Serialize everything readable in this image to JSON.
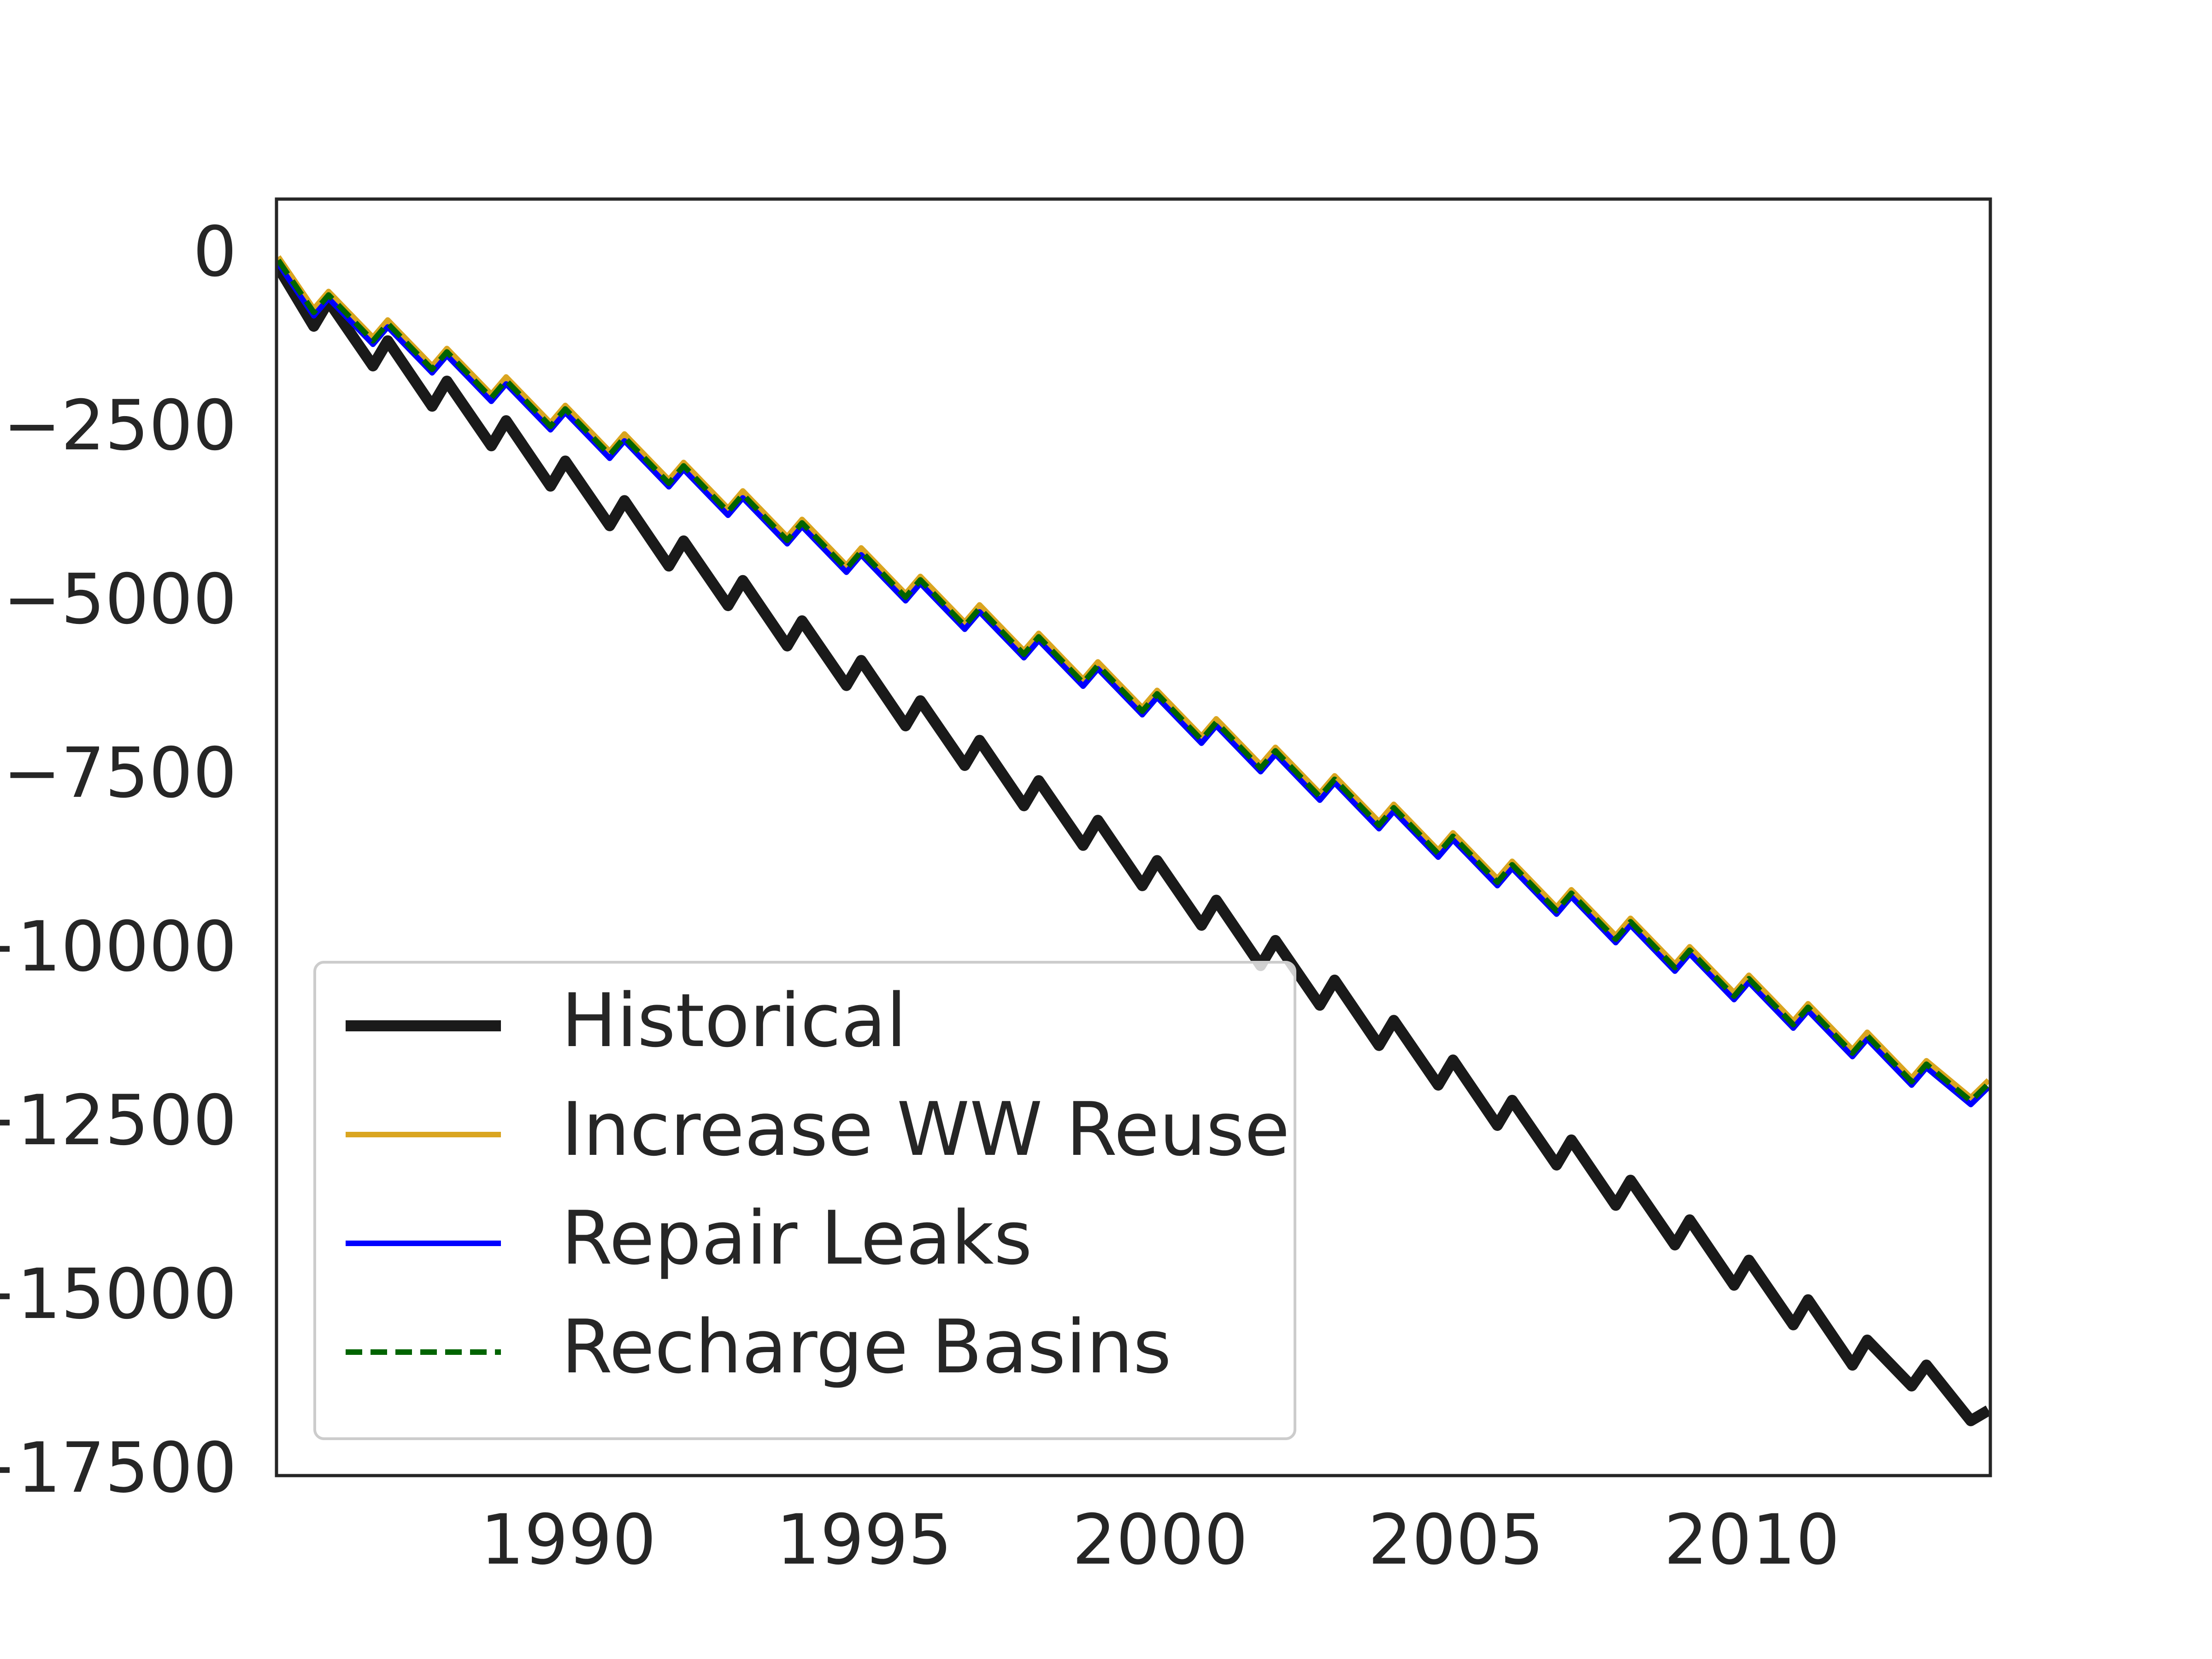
{
  "chart_data": {
    "type": "line",
    "x": [
      1985.1,
      1985.7,
      1985.95,
      1986.7,
      1986.95,
      1987.7,
      1987.95,
      1988.7,
      1988.95,
      1989.7,
      1989.95,
      1990.7,
      1990.95,
      1991.7,
      1991.95,
      1992.7,
      1992.95,
      1993.7,
      1993.95,
      1994.7,
      1994.95,
      1995.7,
      1995.95,
      1996.7,
      1996.95,
      1997.7,
      1997.95,
      1998.7,
      1998.95,
      1999.7,
      1999.95,
      2000.7,
      2000.95,
      2001.7,
      2001.95,
      2002.7,
      2002.95,
      2003.7,
      2003.95,
      2004.7,
      2004.95,
      2005.7,
      2005.95,
      2006.7,
      2006.95,
      2007.7,
      2007.95,
      2008.7,
      2008.95,
      2009.7,
      2009.95,
      2010.7,
      2010.95,
      2011.7,
      2011.95,
      2012.7,
      2012.95,
      2013.7,
      2014
    ],
    "series": [
      {
        "name": "Historical",
        "color": "#1a1a1a",
        "width": 24,
        "dash": null,
        "values": [
          -150,
          -1000,
          -640,
          -1570,
          -1210,
          -2150,
          -1790,
          -2720,
          -2360,
          -3300,
          -2940,
          -3870,
          -3510,
          -4450,
          -4090,
          -5020,
          -4660,
          -5600,
          -5240,
          -6170,
          -5810,
          -6750,
          -6390,
          -7320,
          -6960,
          -7900,
          -7540,
          -8470,
          -8110,
          -9050,
          -8690,
          -9620,
          -9260,
          -10200,
          -9840,
          -10770,
          -10410,
          -11350,
          -10990,
          -11920,
          -11560,
          -12500,
          -12140,
          -13070,
          -12710,
          -13650,
          -13290,
          -14220,
          -13860,
          -14800,
          -14440,
          -15370,
          -15010,
          -15950,
          -15590,
          -16250,
          -15950,
          -16750,
          -16600
        ]
      },
      {
        "name": "Increase WW Reuse",
        "color": "#daa520",
        "width": 12,
        "dash": null,
        "values": [
          0,
          -750,
          -500,
          -1160,
          -910,
          -1570,
          -1320,
          -1980,
          -1730,
          -2390,
          -2140,
          -2800,
          -2550,
          -3210,
          -2960,
          -3620,
          -3370,
          -4030,
          -3780,
          -4440,
          -4190,
          -4850,
          -4600,
          -5260,
          -5010,
          -5670,
          -5420,
          -6080,
          -5830,
          -6490,
          -6240,
          -6900,
          -6650,
          -7310,
          -7060,
          -7720,
          -7470,
          -8130,
          -7880,
          -8540,
          -8290,
          -8950,
          -8700,
          -9360,
          -9110,
          -9770,
          -9520,
          -10180,
          -9930,
          -10590,
          -10340,
          -11000,
          -10750,
          -11410,
          -11160,
          -11820,
          -11570,
          -12100,
          -11850
        ]
      },
      {
        "name": "Repair Leaks",
        "color": "#0000ff",
        "width": 12,
        "dash": null,
        "values": [
          -100,
          -850,
          -600,
          -1260,
          -1010,
          -1670,
          -1420,
          -2080,
          -1830,
          -2490,
          -2240,
          -2900,
          -2650,
          -3310,
          -3060,
          -3720,
          -3470,
          -4130,
          -3880,
          -4540,
          -4290,
          -4950,
          -4700,
          -5360,
          -5110,
          -5770,
          -5520,
          -6180,
          -5930,
          -6590,
          -6340,
          -7000,
          -6750,
          -7410,
          -7160,
          -7820,
          -7570,
          -8230,
          -7980,
          -8640,
          -8390,
          -9050,
          -8800,
          -9460,
          -9210,
          -9870,
          -9620,
          -10280,
          -10030,
          -10690,
          -10440,
          -11100,
          -10850,
          -11510,
          -11260,
          -11920,
          -11670,
          -12200,
          -11950
        ]
      },
      {
        "name": "Recharge Basins",
        "color": "#006400",
        "width": 12,
        "dash": "dashed",
        "values": [
          -50,
          -800,
          -550,
          -1210,
          -960,
          -1620,
          -1370,
          -2030,
          -1780,
          -2440,
          -2190,
          -2850,
          -2600,
          -3260,
          -3010,
          -3670,
          -3420,
          -4080,
          -3830,
          -4490,
          -4240,
          -4900,
          -4650,
          -5310,
          -5060,
          -5720,
          -5470,
          -6130,
          -5880,
          -6540,
          -6290,
          -6950,
          -6700,
          -7360,
          -7110,
          -7770,
          -7520,
          -8180,
          -7930,
          -8590,
          -8340,
          -9000,
          -8750,
          -9410,
          -9160,
          -9820,
          -9570,
          -10230,
          -9980,
          -10640,
          -10390,
          -11050,
          -10800,
          -11460,
          -11210,
          -11870,
          -11620,
          -12150,
          -11900
        ]
      }
    ],
    "xlim": [
      1985.07,
      2014.03
    ],
    "xticks": [
      1990,
      1995,
      2000,
      2005,
      2010
    ],
    "ylim": [
      -17540,
      830
    ],
    "yticks": [
      0,
      {
        "value": -2500,
        "label": "−2500"
      },
      {
        "value": -5000,
        "label": "−5000"
      },
      {
        "value": -7500,
        "label": "−7500"
      },
      {
        "value": -10000,
        "label": "−10000"
      },
      {
        "value": -12500,
        "label": "−12500"
      },
      {
        "value": -15000,
        "label": "−15000"
      },
      {
        "value": -17500,
        "label": "−17500"
      }
    ],
    "grid": false,
    "legend": "lower left"
  }
}
